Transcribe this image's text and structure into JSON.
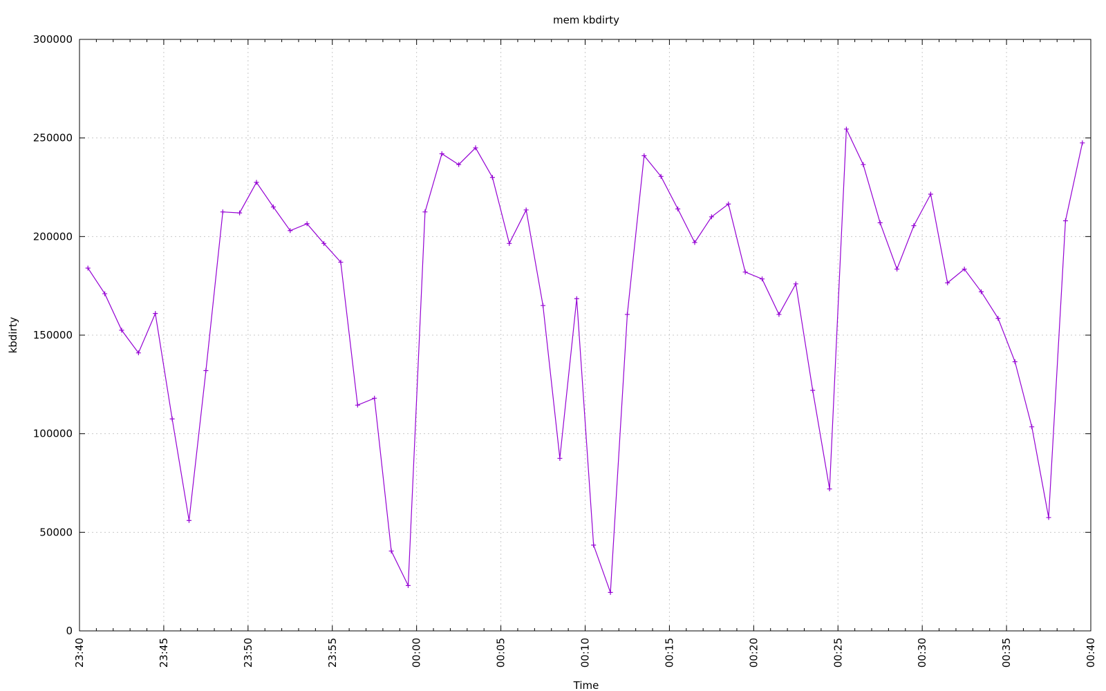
{
  "chart_data": {
    "type": "line",
    "title": "mem  kbdirty",
    "xlabel": "Time",
    "ylabel": "kbdirty",
    "ylim": [
      0,
      300000
    ],
    "xlim": [
      "23:40",
      "00:40"
    ],
    "y_ticks": [
      0,
      50000,
      100000,
      150000,
      200000,
      250000,
      300000
    ],
    "x_ticks": [
      "23:40",
      "23:45",
      "23:50",
      "23:55",
      "00:00",
      "00:05",
      "00:10",
      "00:15",
      "00:20",
      "00:25",
      "00:30",
      "00:35",
      "00:40"
    ],
    "grid": true,
    "legend": "none",
    "series": [
      {
        "color": "#9400d3",
        "x": [
          "23:40:30",
          "23:41:30",
          "23:42:30",
          "23:43:30",
          "23:44:30",
          "23:45:30",
          "23:46:30",
          "23:47:30",
          "23:48:30",
          "23:49:30",
          "23:50:30",
          "23:51:30",
          "23:52:30",
          "23:53:30",
          "23:54:30",
          "23:55:30",
          "23:56:30",
          "23:57:30",
          "23:58:30",
          "23:59:30",
          "00:00:30",
          "00:01:30",
          "00:02:30",
          "00:03:30",
          "00:04:30",
          "00:05:30",
          "00:06:30",
          "00:07:30",
          "00:08:30",
          "00:09:30",
          "00:10:30",
          "00:11:30",
          "00:12:30",
          "00:13:30",
          "00:14:30",
          "00:15:30",
          "00:16:30",
          "00:17:30",
          "00:18:30",
          "00:19:30",
          "00:20:30",
          "00:21:30",
          "00:22:30",
          "00:23:30",
          "00:24:30",
          "00:25:30",
          "00:26:30",
          "00:27:30",
          "00:28:30",
          "00:29:30",
          "00:30:30",
          "00:31:30",
          "00:32:30",
          "00:33:30",
          "00:34:30",
          "00:35:30",
          "00:36:30",
          "00:37:30",
          "00:38:30",
          "00:39:30"
        ],
        "values": [
          184000,
          171000,
          152500,
          141000,
          161000,
          107500,
          56000,
          132000,
          212500,
          212000,
          227500,
          215000,
          203000,
          206500,
          196500,
          187000,
          114500,
          118000,
          40500,
          23000,
          212500,
          242000,
          236500,
          245000,
          230000,
          196500,
          213500,
          165000,
          87500,
          168500,
          43500,
          19500,
          160500,
          241000,
          230500,
          214000,
          197000,
          210000,
          216500,
          182000,
          178500,
          160500,
          176000,
          122000,
          72000,
          254500,
          236500,
          207000,
          183500,
          205500,
          221500,
          176500,
          183500,
          172000,
          158500,
          136500,
          103500,
          57500,
          208000,
          247500
        ]
      }
    ]
  }
}
